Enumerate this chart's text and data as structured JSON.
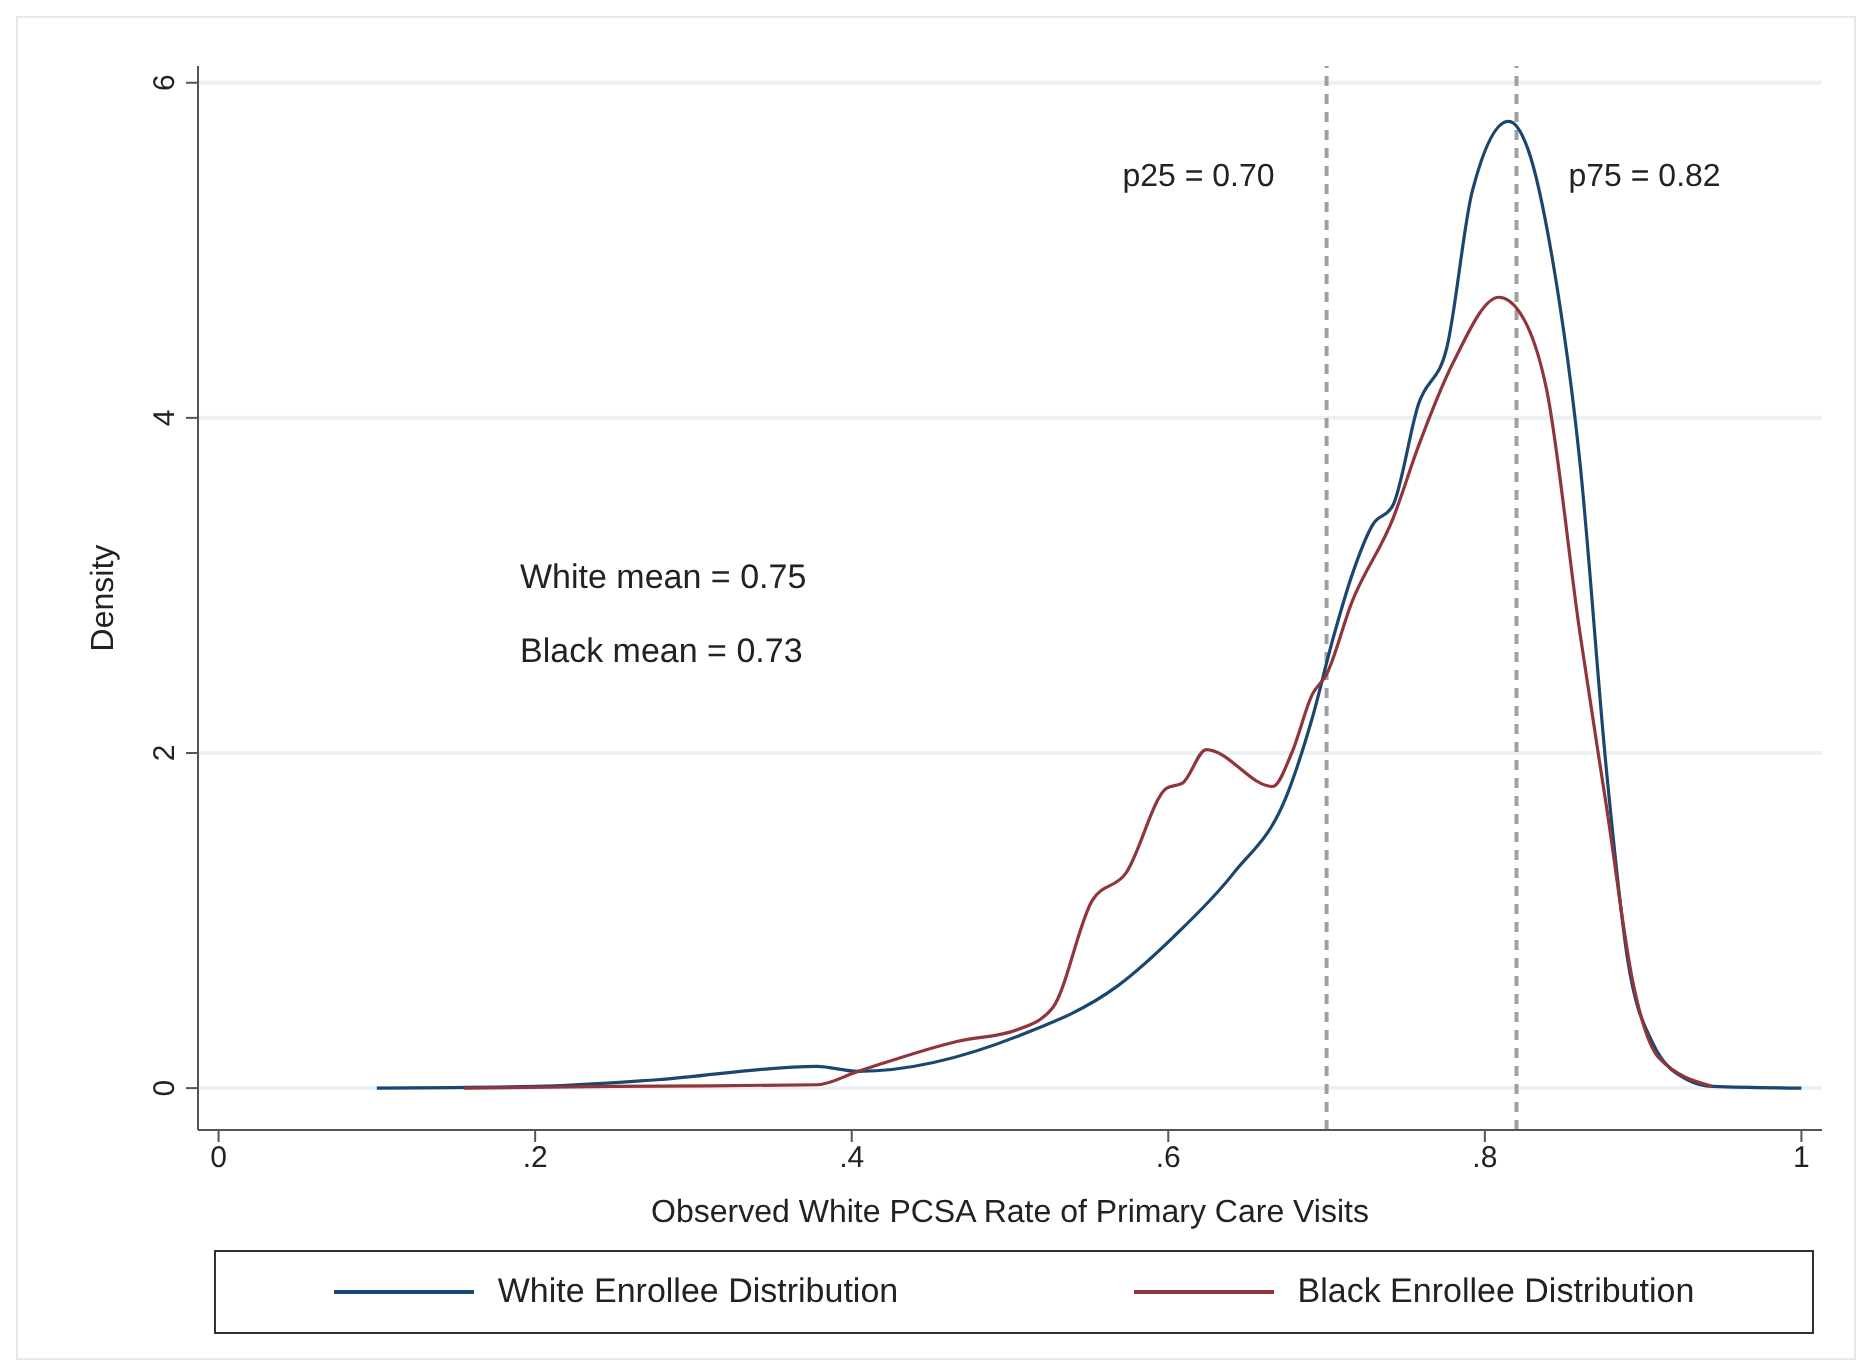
{
  "chart_data": {
    "type": "line",
    "xlabel": "Observed White PCSA Rate of Primary Care Visits",
    "ylabel": "Density",
    "series": [
      {
        "name": "White Enrollee Distribution",
        "color": "#1a476f",
        "x": [
          0.1,
          0.2,
          0.277,
          0.378,
          0.404,
          0.505,
          0.568,
          0.603,
          0.641,
          0.675,
          0.691,
          0.704,
          0.716,
          0.729,
          0.742,
          0.758,
          0.776,
          0.792,
          0.815,
          0.827,
          0.843,
          0.86,
          0.877,
          0.89,
          0.906,
          0.928,
          0.944,
          1.0
        ],
        "values": [
          0,
          0.01,
          0.05,
          0.13,
          0.1,
          0.31,
          0.61,
          0.9,
          1.28,
          1.75,
          2.21,
          2.68,
          3.06,
          3.36,
          3.48,
          4.08,
          4.42,
          5.35,
          5.77,
          5.61,
          4.93,
          3.74,
          1.88,
          0.78,
          0.27,
          0.05,
          0.01,
          0
        ]
      },
      {
        "name": "Black Enrollee Distribution",
        "color": "#90353b",
        "x": [
          0.155,
          0.25,
          0.378,
          0.404,
          0.467,
          0.505,
          0.527,
          0.552,
          0.573,
          0.599,
          0.609,
          0.624,
          0.666,
          0.678,
          0.691,
          0.7,
          0.716,
          0.742,
          0.758,
          0.78,
          0.809,
          0.822,
          0.839,
          0.86,
          0.877,
          0.894,
          0.91,
          0.944
        ],
        "values": [
          0,
          0.01,
          0.02,
          0.1,
          0.28,
          0.35,
          0.48,
          1.12,
          1.28,
          1.79,
          1.82,
          2.02,
          1.8,
          2.0,
          2.35,
          2.47,
          2.9,
          3.4,
          3.83,
          4.33,
          4.72,
          4.63,
          4.17,
          2.72,
          1.67,
          0.61,
          0.18,
          0.01
        ]
      }
    ],
    "xlim": [
      -0.013,
      1.013
    ],
    "xticks": [
      0,
      {
        "value": 0.2,
        "label": ".2"
      },
      {
        "value": 0.4,
        "label": ".4"
      },
      {
        "value": 0.6,
        "label": ".6"
      },
      {
        "value": 0.8,
        "label": ".8"
      },
      1
    ],
    "ylim": [
      -0.25,
      6.1
    ],
    "yticks": [
      0,
      2,
      4,
      6
    ],
    "grid": "y",
    "legend": "bottom",
    "line_style": "solid",
    "marker": "none",
    "ref_lines": [
      {
        "axis": "x",
        "value": 0.7,
        "label": "p25 = 0.70",
        "color": "#a0a0a0",
        "line_style": "dashed"
      },
      {
        "axis": "x",
        "value": 0.82,
        "label": "p75 = 0.82",
        "color": "#a0a0a0",
        "line_style": "dashed"
      }
    ],
    "annotations": [
      "White mean = 0.75",
      "Black mean = 0.73"
    ]
  }
}
